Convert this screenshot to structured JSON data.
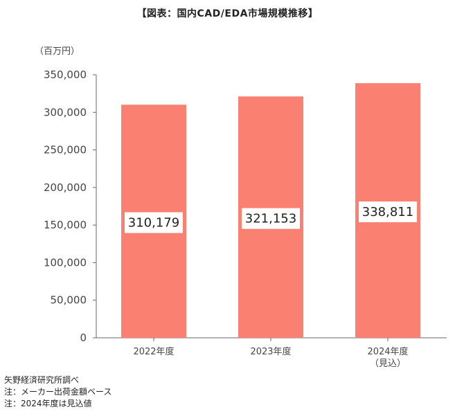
{
  "chart_data": {
    "type": "bar",
    "title": "【図表：国内CAD/EDA市場規模推移】",
    "unit_label": "（百万円）",
    "categories": [
      "2022年度",
      "2023年度",
      "2024年度"
    ],
    "category_sublabels": [
      "",
      "",
      "（見込）"
    ],
    "values": [
      310179,
      321153,
      338811
    ],
    "value_labels": [
      "310,179",
      "321,153",
      "338,811"
    ],
    "ylim": [
      0,
      350000
    ],
    "yticks": [
      0,
      50000,
      100000,
      150000,
      200000,
      250000,
      300000,
      350000
    ],
    "ytick_labels": [
      "0",
      "50,000",
      "100,000",
      "150,000",
      "200,000",
      "250,000",
      "300,000",
      "350,000"
    ],
    "bar_color": "#fa8072",
    "grid": false,
    "legend": "none"
  },
  "notes": [
    "矢野経済研究所調べ",
    "注：メーカー出荷金額ベース",
    "注：2024年度は見込値"
  ]
}
